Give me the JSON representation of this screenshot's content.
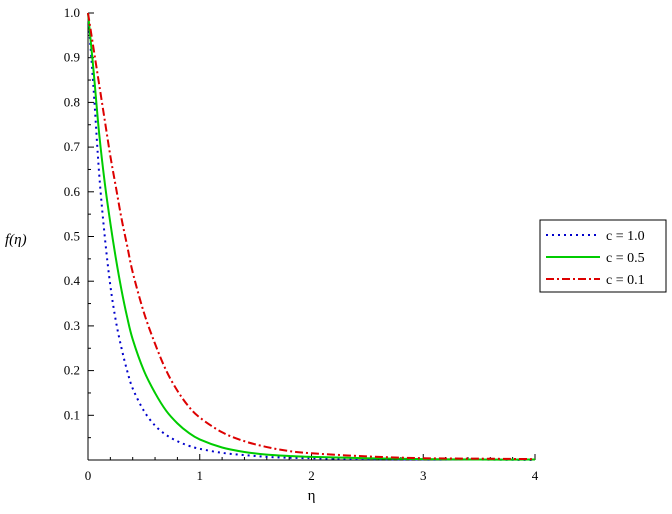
{
  "chart_data": {
    "type": "line",
    "xlabel": "η",
    "ylabel": "f(η)",
    "xlim": [
      0,
      4
    ],
    "ylim": [
      0,
      1.0
    ],
    "x_ticks": [
      0,
      1,
      2,
      3,
      4
    ],
    "y_ticks": [
      0.1,
      0.2,
      0.3,
      0.4,
      0.5,
      0.6,
      0.7,
      0.8,
      0.9,
      1.0
    ],
    "x_tick_labels": [
      "0",
      "1",
      "2",
      "3",
      "4"
    ],
    "y_tick_labels": [
      "0.1",
      "0.2",
      "0.3",
      "0.4",
      "0.5",
      "0.6",
      "0.7",
      "0.8",
      "0.9",
      "1.0"
    ],
    "grid": false,
    "legend_position": "right",
    "x": [
      0,
      0.05,
      0.1,
      0.15,
      0.2,
      0.25,
      0.3,
      0.35,
      0.4,
      0.5,
      0.6,
      0.7,
      0.8,
      0.9,
      1.0,
      1.2,
      1.4,
      1.6,
      1.8,
      2.0,
      2.5,
      3.0,
      3.5,
      4.0
    ],
    "series": [
      {
        "name": "c = 1.0",
        "color": "#0000cc",
        "style": "dotted",
        "values": [
          1.0,
          0.83,
          0.64,
          0.5,
          0.39,
          0.31,
          0.25,
          0.2,
          0.16,
          0.11,
          0.077,
          0.056,
          0.042,
          0.032,
          0.025,
          0.016,
          0.011,
          0.007,
          0.005,
          0.004,
          0.002,
          0.001,
          0.001,
          0.0
        ]
      },
      {
        "name": "c = 0.5",
        "color": "#00cc00",
        "style": "solid",
        "values": [
          1.0,
          0.87,
          0.73,
          0.62,
          0.53,
          0.45,
          0.38,
          0.32,
          0.27,
          0.2,
          0.15,
          0.11,
          0.082,
          0.061,
          0.046,
          0.028,
          0.018,
          0.012,
          0.009,
          0.007,
          0.004,
          0.002,
          0.001,
          0.001
        ]
      },
      {
        "name": "c = 0.1",
        "color": "#dd0000",
        "style": "dashdot",
        "values": [
          1.0,
          0.92,
          0.84,
          0.76,
          0.68,
          0.61,
          0.54,
          0.48,
          0.42,
          0.33,
          0.26,
          0.2,
          0.155,
          0.12,
          0.095,
          0.062,
          0.042,
          0.029,
          0.02,
          0.015,
          0.008,
          0.004,
          0.003,
          0.002
        ]
      }
    ]
  }
}
